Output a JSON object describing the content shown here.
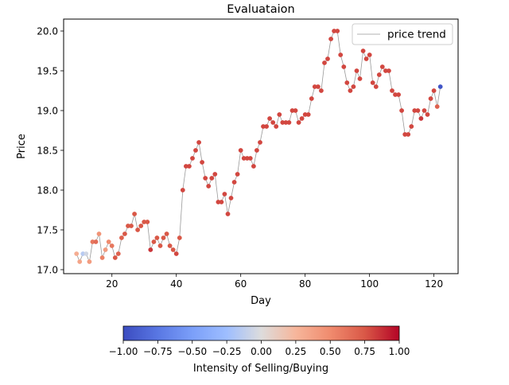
{
  "chart_data": {
    "type": "scatter",
    "title": "Evaluataion",
    "xlabel": "Day",
    "ylabel": "Price",
    "xlim": [
      5,
      127.5
    ],
    "ylim": [
      16.95,
      20.15
    ],
    "xticks": [
      20,
      40,
      60,
      80,
      100,
      120
    ],
    "yticks": [
      17.0,
      17.5,
      18.0,
      18.5,
      19.0,
      19.5,
      20.0
    ],
    "grid": false,
    "legend": {
      "position": "top-right",
      "entries": [
        "price trend"
      ]
    },
    "line_series": {
      "name": "price trend",
      "color": "#999999"
    },
    "x": [
      9,
      10,
      11,
      12,
      13,
      14,
      15,
      16,
      17,
      18,
      19,
      20,
      21,
      22,
      23,
      24,
      25,
      26,
      27,
      28,
      29,
      30,
      31,
      32,
      33,
      34,
      35,
      36,
      37,
      38,
      39,
      40,
      41,
      42,
      43,
      44,
      45,
      46,
      47,
      48,
      49,
      50,
      51,
      52,
      53,
      54,
      55,
      56,
      57,
      58,
      59,
      60,
      61,
      62,
      63,
      64,
      65,
      66,
      67,
      68,
      69,
      70,
      71,
      72,
      73,
      74,
      75,
      76,
      77,
      78,
      79,
      80,
      81,
      82,
      83,
      84,
      85,
      86,
      87,
      88,
      89,
      90,
      91,
      92,
      93,
      94,
      95,
      96,
      97,
      98,
      99,
      100,
      101,
      102,
      103,
      104,
      105,
      106,
      107,
      108,
      109,
      110,
      111,
      112,
      113,
      114,
      115,
      116,
      117,
      118,
      119,
      120,
      121,
      122
    ],
    "y": [
      17.2,
      17.1,
      17.2,
      17.2,
      17.1,
      17.35,
      17.35,
      17.45,
      17.15,
      17.25,
      17.35,
      17.3,
      17.15,
      17.2,
      17.4,
      17.45,
      17.55,
      17.55,
      17.7,
      17.5,
      17.55,
      17.6,
      17.6,
      17.25,
      17.35,
      17.4,
      17.3,
      17.4,
      17.45,
      17.3,
      17.25,
      17.2,
      17.4,
      18.0,
      18.3,
      18.3,
      18.4,
      18.5,
      18.6,
      18.35,
      18.15,
      18.05,
      18.15,
      18.2,
      17.85,
      17.85,
      17.95,
      17.7,
      17.9,
      18.1,
      18.2,
      18.5,
      18.4,
      18.4,
      18.4,
      18.3,
      18.5,
      18.6,
      18.8,
      18.8,
      18.9,
      18.85,
      18.8,
      18.95,
      18.85,
      18.85,
      18.85,
      19.0,
      19.0,
      18.85,
      18.9,
      18.95,
      18.95,
      19.15,
      19.3,
      19.3,
      19.25,
      19.6,
      19.65,
      19.9,
      20.0,
      20.0,
      19.7,
      19.55,
      19.35,
      19.25,
      19.3,
      19.5,
      19.4,
      19.75,
      19.65,
      19.7,
      19.35,
      19.3,
      19.45,
      19.55,
      19.5,
      19.5,
      19.25,
      19.2,
      19.2,
      19.0,
      18.7,
      18.7,
      18.8,
      19.0,
      19.0,
      18.9,
      19.0,
      18.95,
      19.15,
      19.25,
      19.05,
      19.3
    ],
    "intensity": [
      0.3,
      0.35,
      -0.15,
      -0.05,
      0.4,
      0.6,
      0.65,
      0.45,
      0.55,
      0.4,
      0.5,
      0.6,
      0.75,
      0.7,
      0.7,
      0.75,
      0.75,
      0.75,
      0.75,
      0.75,
      0.75,
      0.75,
      0.75,
      0.85,
      0.75,
      0.75,
      0.75,
      0.75,
      0.75,
      0.75,
      0.75,
      0.8,
      0.75,
      0.8,
      0.8,
      0.8,
      0.8,
      0.8,
      0.8,
      0.8,
      0.8,
      0.8,
      0.8,
      0.8,
      0.8,
      0.8,
      0.8,
      0.8,
      0.8,
      0.8,
      0.8,
      0.8,
      0.8,
      0.8,
      0.8,
      0.8,
      0.8,
      0.8,
      0.8,
      0.8,
      0.8,
      0.8,
      0.8,
      0.8,
      0.8,
      0.8,
      0.8,
      0.8,
      0.8,
      0.8,
      0.8,
      0.8,
      0.8,
      0.8,
      0.8,
      0.8,
      0.8,
      0.8,
      0.8,
      0.8,
      0.8,
      0.8,
      0.8,
      0.8,
      0.8,
      0.8,
      0.8,
      0.8,
      0.8,
      0.8,
      0.8,
      0.8,
      0.8,
      0.8,
      0.8,
      0.8,
      0.8,
      0.8,
      0.8,
      0.8,
      0.8,
      0.8,
      0.8,
      0.8,
      0.8,
      0.8,
      0.8,
      0.85,
      0.8,
      0.8,
      0.8,
      0.8,
      0.7,
      -0.95
    ],
    "colorbar": {
      "label": "Intensity of Selling/Buying",
      "range": [
        -1.0,
        1.0
      ],
      "ticks": [
        "−1.00",
        "−0.75",
        "−0.50",
        "−0.25",
        "0.00",
        "0.25",
        "0.50",
        "0.75",
        "1.00"
      ],
      "colormap": "coolwarm"
    }
  }
}
